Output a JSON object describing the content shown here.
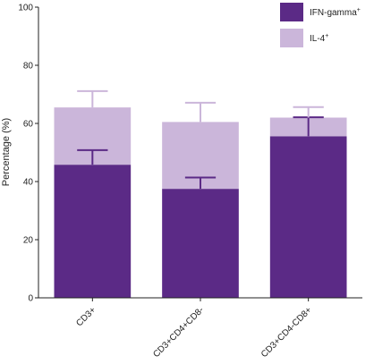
{
  "chart_data": {
    "type": "bar",
    "stacked": true,
    "categories": [
      "CD3+",
      "CD3+CD4+CD8-",
      "CD3+CD4-CD8+"
    ],
    "ylabel": "Percentage (%)",
    "xlabel": "",
    "ylim": [
      0,
      100
    ],
    "yticks": [
      0,
      20,
      40,
      60,
      80,
      100
    ],
    "grid": false,
    "legend_position": "top-right",
    "series": [
      {
        "name": "IFN-gamma",
        "name_superscript": "+",
        "color": "#5b2a86",
        "values": [
          45.8,
          37.5,
          55.6
        ],
        "error": [
          5.0,
          3.9,
          6.5
        ]
      },
      {
        "name": "IL-4",
        "name_superscript": "+",
        "color": "#cbb6da",
        "values": [
          19.7,
          23.0,
          6.4
        ],
        "error": [
          5.6,
          6.6,
          3.6
        ]
      }
    ]
  }
}
